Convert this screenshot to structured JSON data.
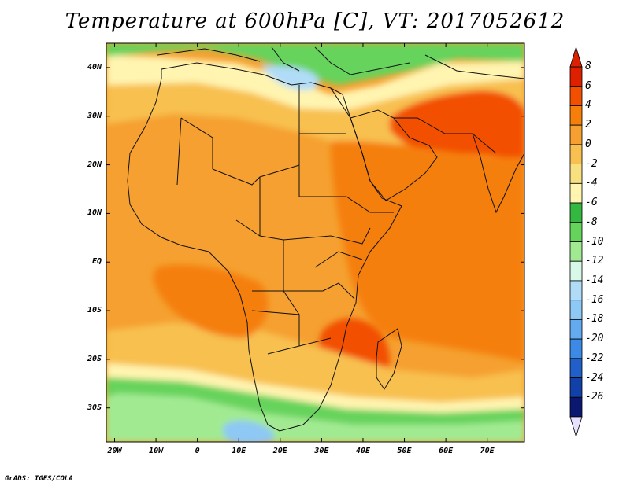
{
  "title": "Temperature at 600hPa [C], VT: 2017052612",
  "footer": "GrADS: IGES/COLA",
  "map": {
    "lon_range": [
      -22,
      79
    ],
    "lat_range": [
      -37,
      45
    ],
    "y_axis_labels": [
      "40N",
      "30N",
      "20N",
      "10N",
      "EQ",
      "10S",
      "20S",
      "30S"
    ],
    "x_axis_labels": [
      "20W",
      "10W",
      "0",
      "10E",
      "20E",
      "30E",
      "40E",
      "50E",
      "60E",
      "70E"
    ]
  },
  "colorbar": {
    "labels": [
      "8",
      "6",
      "4",
      "2",
      "0",
      "-2",
      "-4",
      "-6",
      "-8",
      "-10",
      "-12",
      "-14",
      "-16",
      "-18",
      "-20",
      "-22",
      "-24",
      "-26"
    ],
    "colors": [
      "#dd2000",
      "#f25000",
      "#f57f0a",
      "#f5a030",
      "#f8c050",
      "#f8e080",
      "#fff4b0",
      "#35b840",
      "#66d35c",
      "#a2ea92",
      "#d8f8e8",
      "#b0dcf8",
      "#8ec8f4",
      "#64aaee",
      "#3c8ae6",
      "#2060c8",
      "#1040a8",
      "#0a1870"
    ],
    "top_arrow_color": "#dd2000",
    "bottom_arrow_color": "#e8e0ff"
  },
  "colors": {
    "warm_orange": "#f5a030",
    "deep_orange": "#f57f0a",
    "red": "#f25000",
    "light_orange": "#f8c050",
    "pale_yellow": "#fff4b0",
    "light_green": "#a2ea92",
    "green": "#66d35c",
    "dark_green": "#35b840",
    "pale_blue": "#b0dcf8",
    "mid_blue": "#8ec8f4"
  }
}
